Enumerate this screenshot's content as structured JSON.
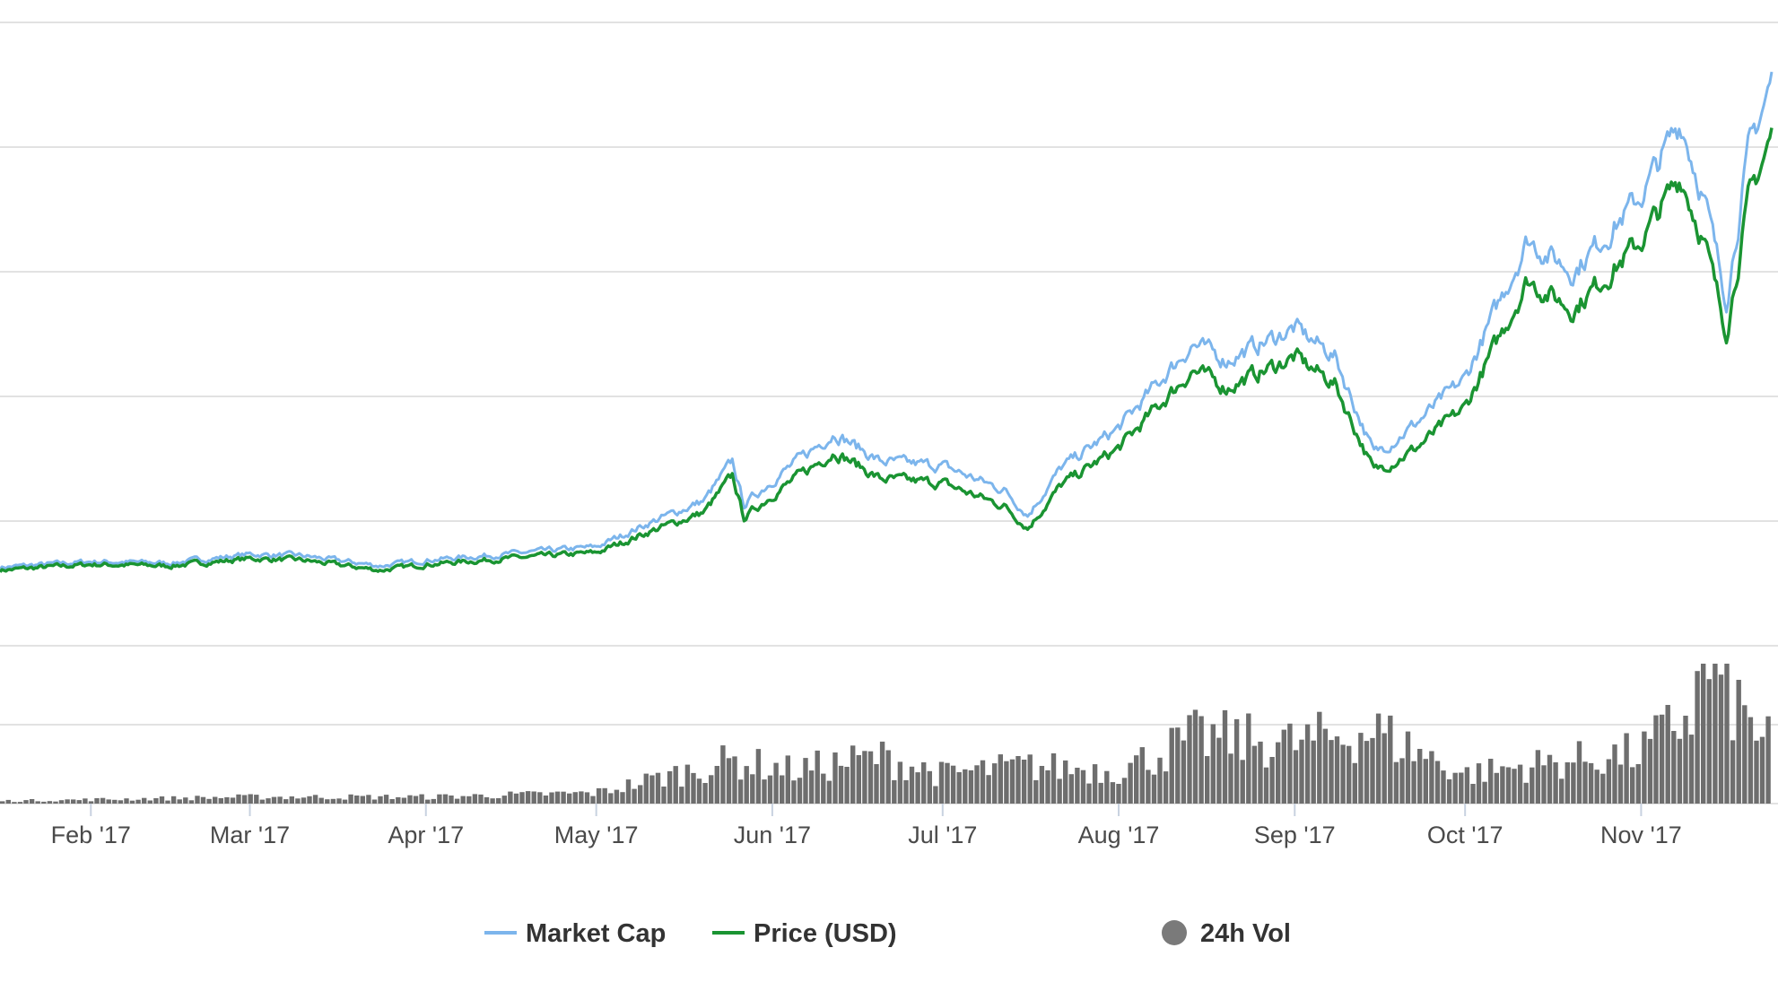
{
  "chart_data": {
    "type": "line",
    "title": "",
    "xlabel": "",
    "ylabel": "",
    "y_tick_labels_shown": false,
    "grid": true,
    "legend_placement": "bottom",
    "x_tick_labels": [
      "Feb '17",
      "Mar '17",
      "Apr '17",
      "May '17",
      "Jun '17",
      "Jul '17",
      "Aug '17",
      "Sep '17",
      "Oct '17",
      "Nov '17"
    ],
    "x_range": [
      "2017-01-16",
      "2017-11-24"
    ],
    "price_gridlines": 5,
    "volume_gridlines": 2,
    "colors": {
      "market_cap": "#7cb5ec",
      "price": "#1a9432",
      "volume": "#6e6e6e",
      "legend_volume_marker": "#7a7a7a"
    },
    "series": [
      {
        "name": "Market Cap",
        "x": [
          "2017-01-16",
          "2017-02-01",
          "2017-02-15",
          "2017-03-01",
          "2017-03-10",
          "2017-03-24",
          "2017-04-01",
          "2017-04-15",
          "2017-05-01",
          "2017-05-10",
          "2017-05-20",
          "2017-05-25",
          "2017-05-27",
          "2017-06-01",
          "2017-06-12",
          "2017-06-20",
          "2017-07-01",
          "2017-07-12",
          "2017-07-16",
          "2017-07-22",
          "2017-08-01",
          "2017-08-14",
          "2017-08-20",
          "2017-09-01",
          "2017-09-08",
          "2017-09-15",
          "2017-09-22",
          "2017-10-01",
          "2017-10-12",
          "2017-10-20",
          "2017-11-01",
          "2017-11-08",
          "2017-11-12",
          "2017-11-16",
          "2017-11-20",
          "2017-11-24"
        ],
        "values": [
          0.52,
          0.56,
          0.55,
          0.61,
          0.6,
          0.53,
          0.57,
          0.61,
          0.66,
          0.82,
          0.98,
          1.25,
          0.95,
          1.12,
          1.45,
          1.25,
          1.22,
          1.05,
          0.88,
          1.21,
          1.48,
          2.06,
          1.95,
          2.17,
          1.98,
          1.3,
          1.5,
          1.82,
          2.78,
          2.56,
          3.08,
          3.6,
          3.08,
          2.37,
          3.4,
          3.88
        ]
      },
      {
        "name": "Price (USD)",
        "x": [
          "2017-01-16",
          "2017-02-01",
          "2017-02-15",
          "2017-03-01",
          "2017-03-10",
          "2017-03-24",
          "2017-04-01",
          "2017-04-15",
          "2017-05-01",
          "2017-05-10",
          "2017-05-20",
          "2017-05-25",
          "2017-05-27",
          "2017-06-01",
          "2017-06-12",
          "2017-06-20",
          "2017-07-01",
          "2017-07-12",
          "2017-07-16",
          "2017-07-22",
          "2017-08-01",
          "2017-08-14",
          "2017-08-20",
          "2017-09-01",
          "2017-09-08",
          "2017-09-15",
          "2017-09-22",
          "2017-10-01",
          "2017-10-12",
          "2017-10-20",
          "2017-11-01",
          "2017-11-08",
          "2017-11-12",
          "2017-11-16",
          "2017-11-20",
          "2017-11-24"
        ],
        "values": [
          0.5,
          0.54,
          0.53,
          0.58,
          0.57,
          0.5,
          0.54,
          0.58,
          0.62,
          0.76,
          0.9,
          1.15,
          0.86,
          1.02,
          1.32,
          1.13,
          1.1,
          0.94,
          0.79,
          1.09,
          1.34,
          1.88,
          1.76,
          1.97,
          1.79,
          1.18,
          1.33,
          1.62,
          2.5,
          2.3,
          2.77,
          3.22,
          2.78,
          2.15,
          3.06,
          3.5
        ]
      },
      {
        "name": "24h Vol",
        "x": [
          "2017-01-16",
          "2017-02-01",
          "2017-03-01",
          "2017-04-01",
          "2017-05-01",
          "2017-05-25",
          "2017-06-05",
          "2017-06-20",
          "2017-07-01",
          "2017-07-15",
          "2017-08-01",
          "2017-08-15",
          "2017-09-01",
          "2017-09-15",
          "2017-10-01",
          "2017-10-15",
          "2017-11-01",
          "2017-11-10",
          "2017-11-13",
          "2017-11-20",
          "2017-11-24"
        ],
        "values": [
          0.02,
          0.03,
          0.05,
          0.05,
          0.08,
          0.32,
          0.25,
          0.35,
          0.22,
          0.28,
          0.25,
          0.5,
          0.45,
          0.55,
          0.22,
          0.3,
          0.38,
          0.7,
          1.05,
          0.6,
          0.5
        ]
      }
    ]
  }
}
